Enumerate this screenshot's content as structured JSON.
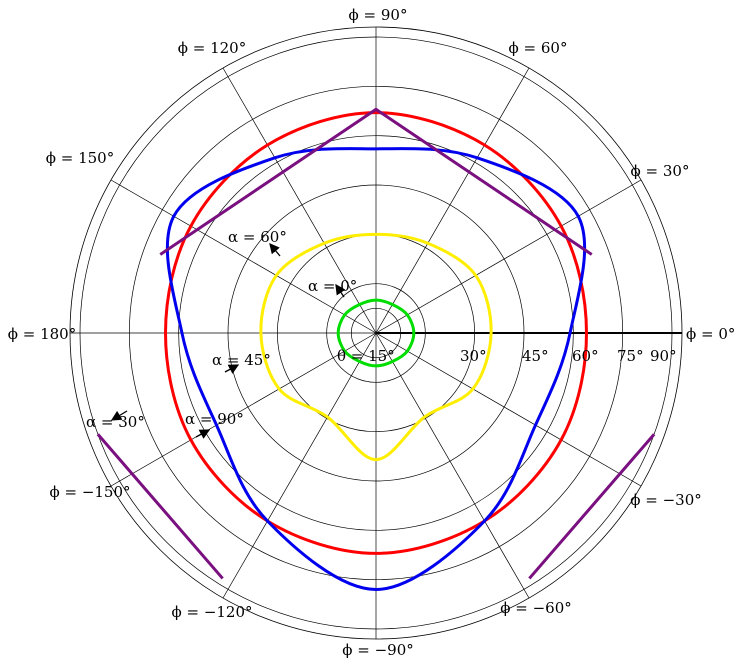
{
  "chart_data": {
    "type": "polar",
    "radial_axis": {
      "ticks": [
        15,
        30,
        45,
        60,
        75,
        90
      ],
      "tick_labels": [
        "15°",
        "30°",
        "45°",
        "60°",
        "75°",
        "90°"
      ],
      "axis_prefix": "θ = ",
      "range": [
        0,
        90
      ],
      "extra_rings": [
        7.5,
        90
      ]
    },
    "angular_axis": {
      "ticks_deg": [
        0,
        30,
        60,
        90,
        120,
        150,
        180,
        -150,
        -120,
        -90,
        -60,
        -30
      ],
      "tick_labels": [
        "ϕ = 0°",
        "ϕ = 30°",
        "ϕ = 60°",
        "ϕ = 90°",
        "ϕ = 120°",
        "ϕ = 150°",
        "ϕ = 180°",
        "ϕ = −150°",
        "ϕ = −120°",
        "ϕ = −90°",
        "ϕ = −60°",
        "ϕ = −30°"
      ]
    },
    "series": [
      {
        "name": "α = 0°",
        "color": "#00dd00",
        "points": [
          [
            0,
            11.5
          ],
          [
            30,
            11.0
          ],
          [
            60,
            10.0
          ],
          [
            90,
            10.0
          ],
          [
            120,
            10.0
          ],
          [
            150,
            11.0
          ],
          [
            180,
            11.5
          ],
          [
            210,
            11.0
          ],
          [
            240,
            10.0
          ],
          [
            270,
            10.0
          ],
          [
            300,
            10.0
          ],
          [
            330,
            11.0
          ]
        ]
      },
      {
        "name": "α = 60°",
        "color": "#ffee00",
        "points": [
          [
            0,
            35.0
          ],
          [
            30,
            35.0
          ],
          [
            60,
            31.5
          ],
          [
            90,
            30.0
          ],
          [
            120,
            31.5
          ],
          [
            150,
            35.0
          ],
          [
            180,
            35.0
          ],
          [
            210,
            34.0
          ],
          [
            240,
            29.5
          ],
          [
            270,
            38.5
          ],
          [
            300,
            29.5
          ],
          [
            330,
            34.0
          ]
        ]
      },
      {
        "name": "α = 45°",
        "color": "#ff0000",
        "points": [
          [
            0,
            64.0
          ],
          [
            30,
            65.0
          ],
          [
            60,
            66.0
          ],
          [
            90,
            67.0
          ],
          [
            120,
            66.0
          ],
          [
            150,
            65.0
          ],
          [
            180,
            64.0
          ],
          [
            210,
            65.0
          ],
          [
            240,
            66.0
          ],
          [
            270,
            67.0
          ],
          [
            300,
            66.0
          ],
          [
            330,
            65.0
          ]
        ]
      },
      {
        "name": "α = 90°",
        "color": "#0000ee",
        "points": [
          [
            0,
            59.0
          ],
          [
            30,
            71.0
          ],
          [
            60,
            61.5
          ],
          [
            90,
            56.0
          ],
          [
            120,
            61.5
          ],
          [
            150,
            71.0
          ],
          [
            180,
            59.0
          ],
          [
            210,
            56.0
          ],
          [
            240,
            66.0
          ],
          [
            270,
            78.0
          ],
          [
            300,
            66.0
          ],
          [
            330,
            56.0
          ]
        ]
      },
      {
        "name": "α = 30°",
        "color": "#7a1080",
        "segments": [
          [
            [
              160,
              69.8
            ],
            [
              90,
              68.0
            ],
            [
              20,
              69.8
            ]
          ],
          [
            [
              -20,
              90.0
            ],
            [
              -58,
              88.0
            ]
          ],
          [
            [
              -122,
              88.0
            ],
            [
              -160,
              90.0
            ]
          ]
        ]
      }
    ],
    "annotations": [
      {
        "text": "α = 0°"
      },
      {
        "text": "α = 60°"
      },
      {
        "text": "α = 45°"
      },
      {
        "text": "α = 30°"
      },
      {
        "text": "α = 90°"
      }
    ]
  }
}
